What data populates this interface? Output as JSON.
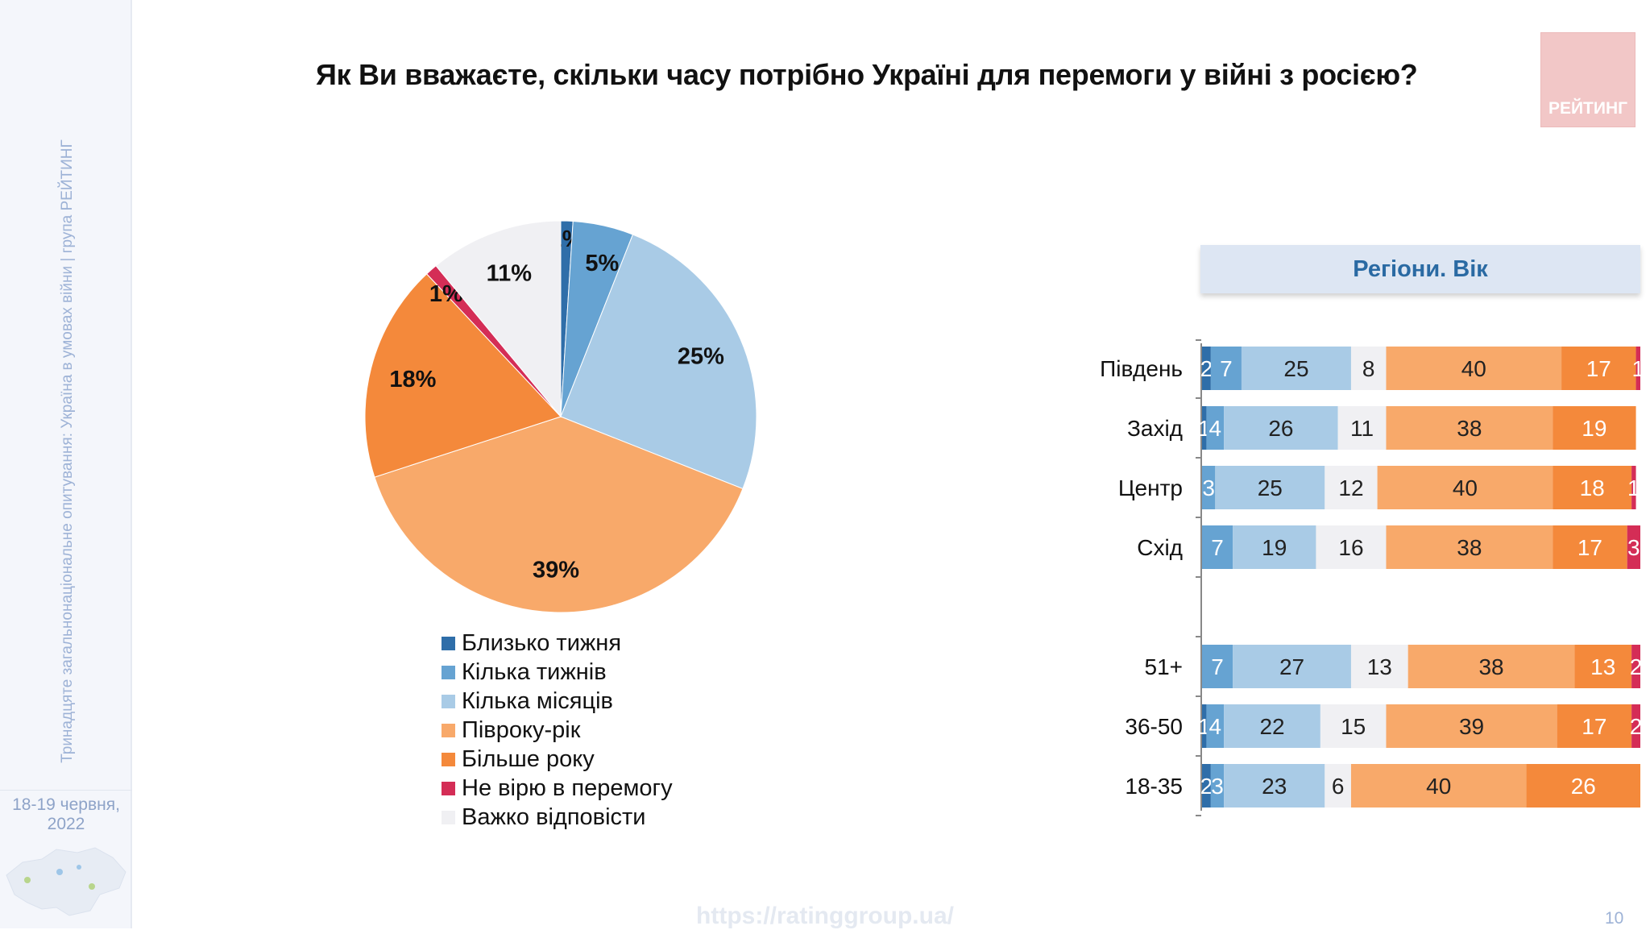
{
  "title": "Як Ви вважаєте, скільки часу потрібно Україні для перемоги у війні з росією?",
  "sidebar": {
    "vertical_text": "Тринадцяте загальнонаціональне опитування: Україна в умовах війни | група РЕЙТИНГ",
    "date_line1": "18-19 червня,",
    "date_line2": "2022"
  },
  "logo_text": "РЕЙТИНГ",
  "url": "https://ratinggroup.ua/",
  "page_number": "10",
  "colors": {
    "Близько тижня": "#2f6ea9",
    "Кілька тижнів": "#66a3d2",
    "Кілька місяців": "#a9cbe6",
    "Півроку-рік": "#f8a96a",
    "Більше року": "#f4893b",
    "Не вірю в перемогу": "#d42d56",
    "Важко відповісти": "#f0f0f3"
  },
  "chart_data": [
    {
      "type": "pie",
      "title": "",
      "slices": [
        {
          "label": "Близько тижня",
          "value": 1,
          "display": "1%"
        },
        {
          "label": "Кілька тижнів",
          "value": 5,
          "display": "5%"
        },
        {
          "label": "Кілька місяців",
          "value": 25,
          "display": "25%"
        },
        {
          "label": "Півроку-рік",
          "value": 39,
          "display": "39%"
        },
        {
          "label": "Більше року",
          "value": 18,
          "display": "18%"
        },
        {
          "label": "Не вірю в перемогу",
          "value": 1,
          "display": "1%"
        },
        {
          "label": "Важко відповісти",
          "value": 11,
          "display": "11%"
        }
      ],
      "legend": [
        "Близько тижня",
        "Кілька тижнів",
        "Кілька місяців",
        "Півроку-рік",
        "Більше року",
        "Не вірю в перемогу",
        "Важко відповісти"
      ],
      "legend_position": "bottom"
    },
    {
      "type": "bar",
      "orientation": "horizontal",
      "stacked": true,
      "title": "Регіони. Вік",
      "series_names": [
        "Близько тижня",
        "Кілька тижнів",
        "Кілька місяців",
        "Важко відповісти",
        "Півроку-рік",
        "Більше року",
        "Не вірю в перемогу"
      ],
      "rows": [
        {
          "label": "Південь",
          "values": [
            2,
            7,
            25,
            8,
            40,
            17,
            1
          ]
        },
        {
          "label": "Захід",
          "values": [
            1,
            4,
            26,
            11,
            38,
            19,
            0
          ]
        },
        {
          "label": "Центр",
          "values": [
            0,
            3,
            25,
            12,
            40,
            18,
            1
          ]
        },
        {
          "label": "Схід",
          "values": [
            0,
            7,
            19,
            16,
            38,
            17,
            3
          ]
        },
        {
          "label": "",
          "values": [
            0,
            0,
            0,
            0,
            0,
            0,
            0
          ]
        },
        {
          "label": "51+",
          "values": [
            0,
            7,
            27,
            13,
            38,
            13,
            2
          ]
        },
        {
          "label": "36-50",
          "values": [
            1,
            4,
            22,
            15,
            39,
            17,
            2
          ]
        },
        {
          "label": "18-35",
          "values": [
            2,
            3,
            23,
            6,
            40,
            26,
            0
          ]
        }
      ],
      "xlim": [
        0,
        100
      ]
    }
  ]
}
